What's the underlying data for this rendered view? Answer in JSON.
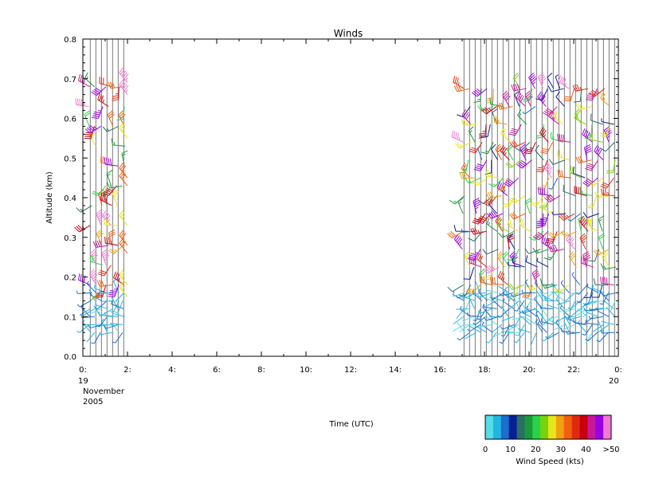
{
  "chart_data": {
    "type": "wind-barb profile time-height",
    "title": "Winds",
    "xlabel": "Time (UTC)",
    "ylabel": "Altitude (km)",
    "xlim_hours": [
      0,
      24
    ],
    "ylim_km": [
      0.0,
      0.8
    ],
    "x_ticks": [
      "0:",
      "2:",
      "4:",
      "6:",
      "8:",
      "10:",
      "12:",
      "14:",
      "16:",
      "18:",
      "20:",
      "22:",
      "0:"
    ],
    "x_tick_hours": [
      0,
      2,
      4,
      6,
      8,
      10,
      12,
      14,
      16,
      18,
      20,
      22,
      24
    ],
    "date_start": [
      "19",
      "November",
      "2005"
    ],
    "date_end": "20",
    "y_ticks": [
      "0.0",
      "0.1",
      "0.2",
      "0.3",
      "0.4",
      "0.5",
      "0.6",
      "0.7",
      "0.8"
    ],
    "profile_times_hours": [
      0.33,
      0.58,
      0.83,
      1.08,
      1.33,
      1.58,
      1.83,
      17.08,
      17.33,
      17.58,
      17.83,
      18.08,
      18.33,
      18.58,
      18.83,
      19.08,
      19.33,
      19.58,
      19.83,
      20.08,
      20.33,
      20.58,
      20.83,
      21.08,
      21.33,
      21.58,
      21.83,
      22.08,
      22.33,
      22.58,
      22.83,
      23.08,
      23.33,
      23.58,
      23.83
    ],
    "colorbar": {
      "title": "Wind Speed (kts)",
      "tick_labels": [
        "0",
        "10",
        "20",
        "30",
        "40",
        ">50"
      ],
      "colors": [
        "#55dde8",
        "#22b5e0",
        "#1a6ecc",
        "#0a1e9a",
        "#2a6e64",
        "#1a9a3a",
        "#2ad24a",
        "#7ad20a",
        "#e6e61a",
        "#f0a010",
        "#f06010",
        "#e02a10",
        "#c80010",
        "#c8189a",
        "#9a00e0",
        "#f07ad2"
      ]
    },
    "barbs_sample": [
      {
        "t": 1.08,
        "alt": 0.69,
        "speed_kts": 28
      },
      {
        "t": 1.58,
        "alt": 0.63,
        "speed_kts": 40
      },
      {
        "t": 1.58,
        "alt": 0.37,
        "speed_kts": 48
      },
      {
        "t": 2.0,
        "alt": 0.69,
        "speed_kts": 55
      },
      {
        "t": 2.0,
        "alt": 0.45,
        "speed_kts": 32
      },
      {
        "t": 17.08,
        "alt": 0.42,
        "speed_kts": 48
      },
      {
        "t": 19.33,
        "alt": 0.29,
        "speed_kts": 55
      },
      {
        "t": 20.58,
        "alt": 0.27,
        "speed_kts": 40
      },
      {
        "t": 23.58,
        "alt": 0.68,
        "speed_kts": 48
      },
      {
        "t": 17.33,
        "alt": 0.12,
        "speed_kts": 4
      }
    ]
  }
}
